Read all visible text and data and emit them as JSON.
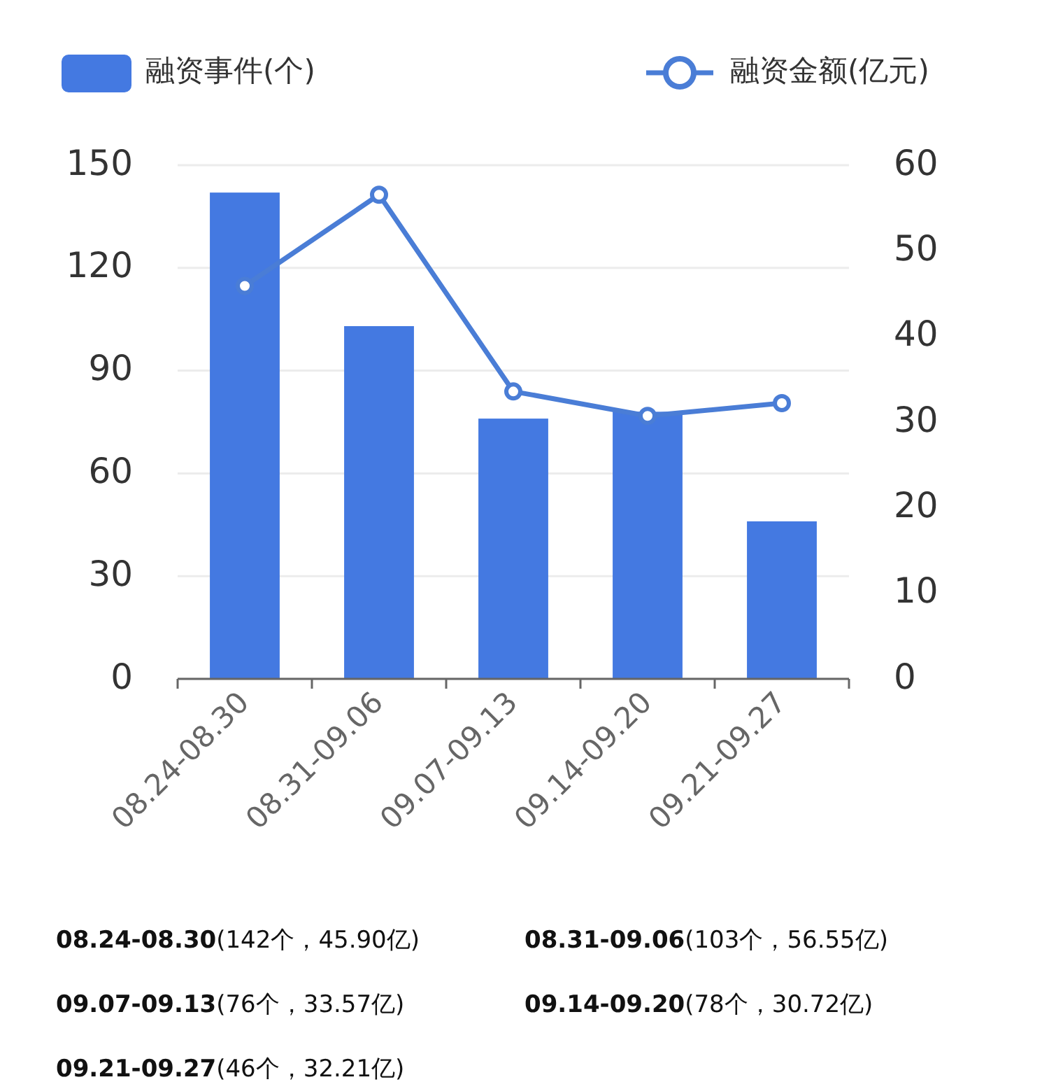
{
  "chart_data": {
    "type": "bar",
    "categories": [
      "08.24-08.30",
      "08.31-09.06",
      "09.07-09.13",
      "09.14-09.20",
      "09.21-09.27"
    ],
    "series": [
      {
        "name": "融资事件(个)",
        "color": "#4479e1",
        "values": [
          142,
          103,
          76,
          78,
          46
        ]
      },
      {
        "name": "融资金额(亿元)",
        "type": "line",
        "axis": "y2",
        "color": "#4a7dd6",
        "values": [
          45.9,
          56.55,
          33.57,
          30.72,
          32.21
        ]
      }
    ],
    "ylim": [
      0,
      150
    ],
    "yticks": [
      0,
      30,
      60,
      90,
      120,
      150
    ],
    "y2lim": [
      0,
      60
    ],
    "y2ticks": [
      0,
      10,
      20,
      30,
      40,
      50,
      60
    ],
    "grid": "y",
    "legend": "top",
    "marker": "circle",
    "line_style": "solid",
    "annotations": [
      "08.24-08.30(142个，45.90亿)",
      "08.31-09.06(103个，56.55亿)",
      "09.07-09.13(76个，33.57亿)",
      "09.14-09.20(78个，30.72亿)",
      "09.21-09.27(46个，32.21亿)"
    ]
  }
}
